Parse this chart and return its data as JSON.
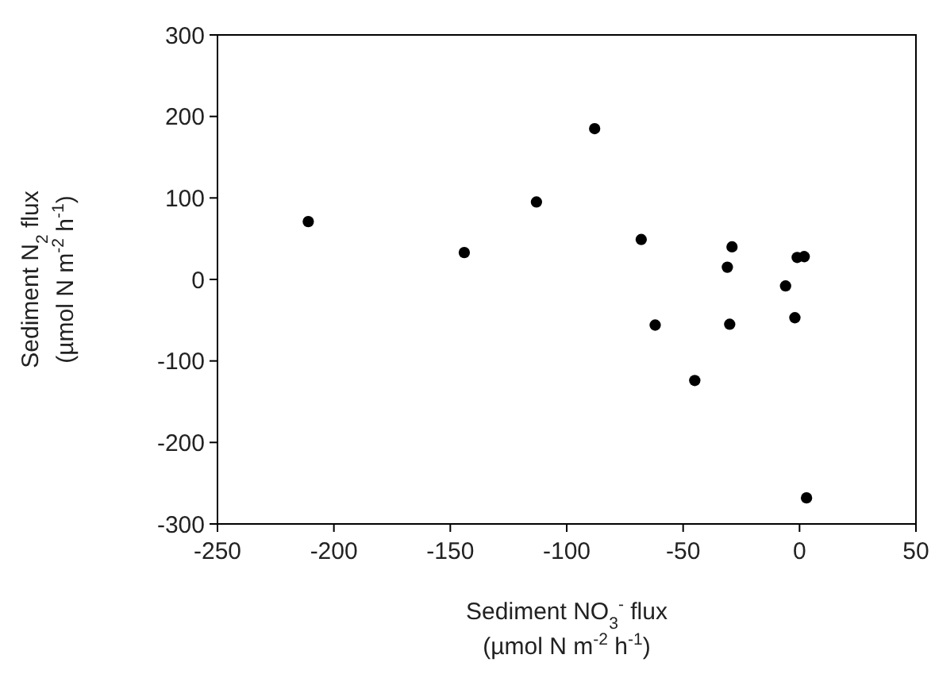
{
  "chart_data": {
    "type": "scatter",
    "xlabel": "Sediment NO$_{3}$$^{-}$ flux\n(µmol N m$^{-2}$ h$^{-1}$)",
    "ylabel": "Sediment N$_{2}$ flux\n(µmol N m$^{-2}$ h$^{-1}$)",
    "x": [
      -211,
      -144,
      -113,
      -88,
      -68,
      -62,
      -45,
      -31,
      -30,
      -29,
      -6,
      -2,
      -1,
      2,
      3
    ],
    "series": [
      {
        "color": "#000000",
        "values": [
          71,
          33,
          95,
          185,
          49,
          -56,
          -124,
          15,
          -55,
          40,
          -8,
          -47,
          27,
          28,
          -268
        ]
      }
    ],
    "xlim": [
      -250,
      50
    ],
    "xticks": [
      -250,
      -200,
      -150,
      -100,
      -50,
      0,
      50
    ],
    "ylim": [
      -300,
      300
    ],
    "yticks": [
      -300,
      -200,
      -100,
      0,
      100,
      200,
      300
    ],
    "grid": false,
    "marker": "circle"
  }
}
